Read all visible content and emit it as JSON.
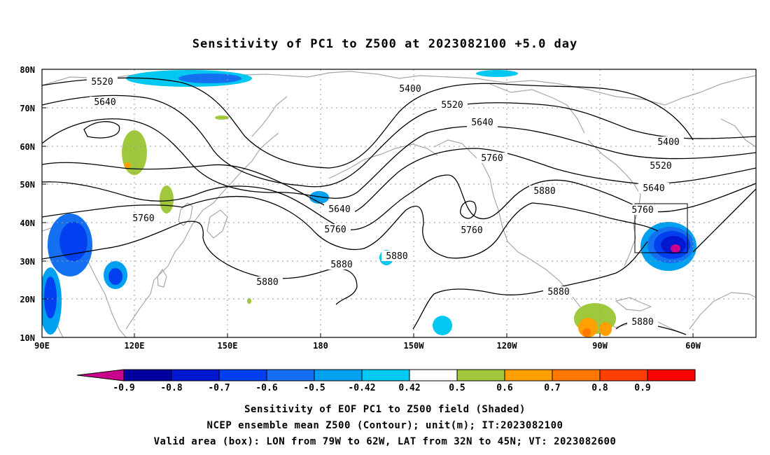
{
  "title": "Sensitivity of PC1 to Z500 at 2023082100 +5.0 day",
  "map": {
    "lat_labels": [
      "80N",
      "70N",
      "60N",
      "50N",
      "40N",
      "30N",
      "20N",
      "10N"
    ],
    "lon_labels": [
      "90E",
      "120E",
      "150E",
      "180",
      "150W",
      "120W",
      "90W",
      "60W"
    ],
    "contour_labels": [
      {
        "id": "c1",
        "text": "5520"
      },
      {
        "id": "c2",
        "text": "5640"
      },
      {
        "id": "c3",
        "text": "5400"
      },
      {
        "id": "c4",
        "text": "5520"
      },
      {
        "id": "c5",
        "text": "5640"
      },
      {
        "id": "c6",
        "text": "5760"
      },
      {
        "id": "c7",
        "text": "5400"
      },
      {
        "id": "c8",
        "text": "5520"
      },
      {
        "id": "c9",
        "text": "5640"
      },
      {
        "id": "c10",
        "text": "5760"
      },
      {
        "id": "c11",
        "text": "5880"
      },
      {
        "id": "c12",
        "text": "5760"
      },
      {
        "id": "c13",
        "text": "5640"
      },
      {
        "id": "c14",
        "text": "5760"
      },
      {
        "id": "c15",
        "text": "5760"
      },
      {
        "id": "c16",
        "text": "5880"
      },
      {
        "id": "c17",
        "text": "5880"
      },
      {
        "id": "c18",
        "text": "5880"
      },
      {
        "id": "c19",
        "text": "5880"
      },
      {
        "id": "c20",
        "text": "5880"
      }
    ]
  },
  "colorbar": {
    "labels": [
      "-0.9",
      "-0.8",
      "-0.7",
      "-0.6",
      "-0.5",
      "-0.42",
      "0.42",
      "0.5",
      "0.6",
      "0.7",
      "0.8",
      "0.9"
    ],
    "colors": [
      "#0000a0",
      "#0018d0",
      "#0040f0",
      "#1470f0",
      "#00a0f0",
      "#00c8f0",
      "#ffffff",
      "#a0c83c",
      "#ffa000",
      "#ff7800",
      "#ff4000",
      "#ff0000"
    ],
    "low_end_color": "#c8008c",
    "high_end_color": "#ff96c8"
  },
  "captions": {
    "line1": "Sensitivity of EOF PC1 to Z500 field (Shaded)",
    "line2": "NCEP ensemble mean Z500 (Contour); unit(m); IT:2023082100",
    "line3": "Valid area (box): LON from 79W to 62W, LAT from 32N to 45N; VT: 2023082600"
  }
}
